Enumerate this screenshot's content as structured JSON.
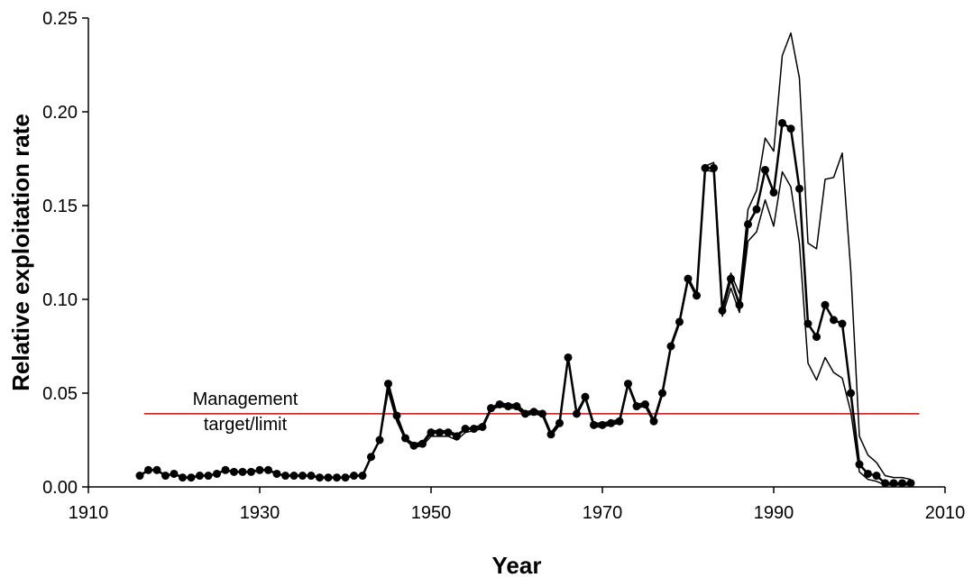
{
  "chart_data": {
    "type": "line",
    "x_label": "Year",
    "y_label": "Relative exploitation rate",
    "xlim": [
      1910,
      2010
    ],
    "xticks": [
      1910,
      1930,
      1950,
      1970,
      1990,
      2010
    ],
    "ylim": [
      0,
      0.25
    ],
    "yticks": [
      {
        "value": 0,
        "label": "0.00"
      },
      {
        "value": 0.05,
        "label": "0.05"
      },
      {
        "value": 0.1,
        "label": "0.10"
      },
      {
        "value": 0.15,
        "label": "0.15"
      },
      {
        "value": 0.2,
        "label": "0.20"
      },
      {
        "value": 0.25,
        "label": "0.25"
      }
    ],
    "x": [
      1916,
      1917,
      1918,
      1919,
      1920,
      1921,
      1922,
      1923,
      1924,
      1925,
      1926,
      1927,
      1928,
      1929,
      1930,
      1931,
      1932,
      1933,
      1934,
      1935,
      1936,
      1937,
      1938,
      1939,
      1940,
      1941,
      1942,
      1943,
      1944,
      1945,
      1946,
      1947,
      1948,
      1949,
      1950,
      1951,
      1952,
      1953,
      1954,
      1955,
      1956,
      1957,
      1958,
      1959,
      1960,
      1961,
      1962,
      1963,
      1964,
      1965,
      1966,
      1967,
      1968,
      1969,
      1970,
      1971,
      1972,
      1973,
      1974,
      1975,
      1976,
      1977,
      1978,
      1979,
      1980,
      1981,
      1982,
      1983,
      1984,
      1985,
      1986,
      1987,
      1988,
      1989,
      1990,
      1991,
      1992,
      1993,
      1994,
      1995,
      1996,
      1997,
      1998,
      1999,
      2000,
      2001,
      2002,
      2003,
      2004,
      2005,
      2006
    ],
    "series": [
      {
        "color": "#000000",
        "markers": true,
        "values": [
          0.006,
          0.009,
          0.009,
          0.006,
          0.007,
          0.005,
          0.005,
          0.006,
          0.006,
          0.007,
          0.009,
          0.008,
          0.008,
          0.008,
          0.009,
          0.009,
          0.007,
          0.006,
          0.006,
          0.006,
          0.006,
          0.005,
          0.005,
          0.005,
          0.005,
          0.006,
          0.006,
          0.016,
          0.025,
          0.055,
          0.038,
          0.026,
          0.022,
          0.023,
          0.029,
          0.029,
          0.029,
          0.027,
          0.031,
          0.031,
          0.032,
          0.042,
          0.044,
          0.043,
          0.043,
          0.039,
          0.04,
          0.039,
          0.028,
          0.034,
          0.069,
          0.039,
          0.048,
          0.033,
          0.033,
          0.034,
          0.035,
          0.055,
          0.043,
          0.044,
          0.035,
          0.05,
          0.075,
          0.088,
          0.111,
          0.102,
          0.17,
          0.17,
          0.094,
          0.111,
          0.097,
          0.14,
          0.148,
          0.169,
          0.157,
          0.194,
          0.191,
          0.159,
          0.087,
          0.08,
          0.097,
          0.089,
          0.087,
          0.05,
          0.012,
          0.007,
          0.006,
          0.002,
          0.002,
          0.002,
          0.002
        ]
      },
      {
        "color": "#000000",
        "markers": false,
        "values": [
          0.006,
          0.009,
          0.009,
          0.006,
          0.007,
          0.005,
          0.005,
          0.006,
          0.006,
          0.007,
          0.009,
          0.008,
          0.008,
          0.008,
          0.009,
          0.009,
          0.007,
          0.006,
          0.006,
          0.006,
          0.006,
          0.005,
          0.005,
          0.005,
          0.005,
          0.006,
          0.006,
          0.016,
          0.025,
          0.053,
          0.036,
          0.026,
          0.023,
          0.024,
          0.03,
          0.03,
          0.03,
          0.028,
          0.031,
          0.032,
          0.033,
          0.042,
          0.045,
          0.044,
          0.044,
          0.04,
          0.041,
          0.04,
          0.029,
          0.035,
          0.069,
          0.04,
          0.048,
          0.034,
          0.034,
          0.035,
          0.036,
          0.055,
          0.044,
          0.045,
          0.036,
          0.051,
          0.076,
          0.089,
          0.112,
          0.103,
          0.171,
          0.173,
          0.096,
          0.114,
          0.103,
          0.148,
          0.158,
          0.186,
          0.179,
          0.23,
          0.242,
          0.218,
          0.13,
          0.127,
          0.164,
          0.165,
          0.178,
          0.115,
          0.027,
          0.017,
          0.013,
          0.006,
          0.005,
          0.005,
          0.004
        ]
      },
      {
        "color": "#000000",
        "markers": false,
        "values": [
          0.006,
          0.009,
          0.009,
          0.006,
          0.007,
          0.005,
          0.005,
          0.006,
          0.006,
          0.007,
          0.009,
          0.008,
          0.008,
          0.008,
          0.009,
          0.009,
          0.007,
          0.006,
          0.006,
          0.006,
          0.006,
          0.005,
          0.005,
          0.005,
          0.005,
          0.006,
          0.006,
          0.016,
          0.025,
          0.051,
          0.035,
          0.025,
          0.021,
          0.022,
          0.027,
          0.027,
          0.027,
          0.025,
          0.029,
          0.03,
          0.031,
          0.041,
          0.043,
          0.042,
          0.042,
          0.038,
          0.039,
          0.038,
          0.027,
          0.033,
          0.068,
          0.038,
          0.047,
          0.032,
          0.032,
          0.033,
          0.034,
          0.054,
          0.042,
          0.043,
          0.034,
          0.049,
          0.074,
          0.087,
          0.11,
          0.101,
          0.169,
          0.168,
          0.091,
          0.106,
          0.093,
          0.131,
          0.136,
          0.153,
          0.139,
          0.168,
          0.16,
          0.13,
          0.066,
          0.057,
          0.069,
          0.061,
          0.058,
          0.04,
          0.008,
          0.004,
          0.003,
          0.001,
          0.001,
          0.001,
          0.001
        ]
      }
    ],
    "reference_line": {
      "value": 0.039,
      "xrange": [
        1916.5,
        2007
      ],
      "color": "#e00000",
      "label_lines": [
        "Management",
        "target/limit"
      ]
    }
  }
}
